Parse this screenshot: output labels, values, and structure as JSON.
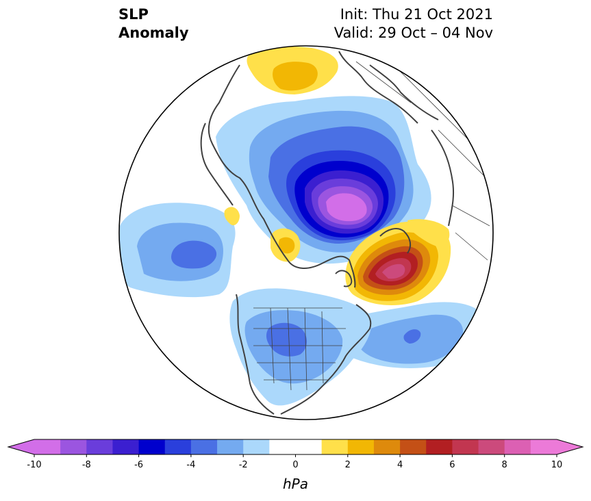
{
  "title": {
    "left_line1": "SLP",
    "left_line2": "Anomaly",
    "right_line1": "Init: Thu 21 Oct 2021",
    "right_line2": "Valid: 29 Oct – 04 Nov"
  },
  "colorbar": {
    "unit": "hPa",
    "ticks": [
      "-10",
      "-8",
      "-6",
      "-4",
      "-2",
      "0",
      "2",
      "4",
      "6",
      "8",
      "10"
    ],
    "tick_values": [
      -10,
      -8,
      -6,
      -4,
      -2,
      0,
      2,
      4,
      6,
      8,
      10
    ],
    "level_step": 1,
    "colors": [
      "#d26ee8",
      "#9b55e0",
      "#6a3ddb",
      "#3b1fd0",
      "#0000cd",
      "#2a3fdc",
      "#4a70e4",
      "#74aaf0",
      "#abd8fb",
      "#ffffff",
      "#ffffff",
      "#ffe04a",
      "#f2b704",
      "#de8a0c",
      "#c45016",
      "#b21f22",
      "#c23650",
      "#cc4a7c",
      "#dc60b3",
      "#ec7ad8"
    ],
    "extend_low_color": "#d26ee8",
    "extend_high_color": "#ec7ad8"
  },
  "map": {
    "projection": "north-polar-stereographic",
    "boundary": "circle",
    "anomaly_centers": [
      {
        "name": "arctic-low",
        "region": "Arctic north of Siberia",
        "min_hPa": -10
      },
      {
        "name": "greenland-high",
        "region": "Greenland / Iceland",
        "max_hPa": 8
      },
      {
        "name": "aleutian-low",
        "region": "Gulf of Alaska",
        "min_hPa": -4
      },
      {
        "name": "north-atlantic-low",
        "region": "central North Atlantic",
        "min_hPa": -4
      },
      {
        "name": "us-low",
        "region": "central United States",
        "min_hPa": -3
      },
      {
        "name": "kara-high",
        "region": "northern Asia",
        "max_hPa": 3
      },
      {
        "name": "beaufort-high",
        "region": "Beaufort Sea",
        "max_hPa": 3
      }
    ]
  }
}
